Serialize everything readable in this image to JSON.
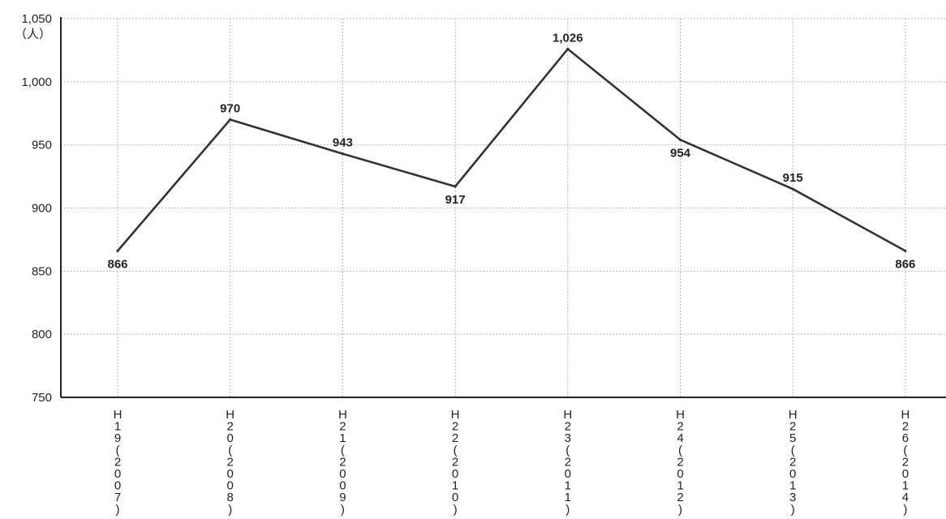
{
  "chart_data": {
    "type": "line",
    "title": "",
    "xlabel": "",
    "ylabel": "",
    "unit_label": "（人）",
    "categories": [
      "H19(2007)",
      "H20(2008)",
      "H21(2009)",
      "H22(2010)",
      "H23(2011)",
      "H24(2012)",
      "H25(2013)",
      "H26(2014)"
    ],
    "category_lines": [
      [
        "H",
        "1",
        "9",
        "(",
        "2",
        "0",
        "0",
        "7",
        ")"
      ],
      [
        "H",
        "2",
        "0",
        "(",
        "2",
        "0",
        "0",
        "8",
        ")"
      ],
      [
        "H",
        "2",
        "1",
        "(",
        "2",
        "0",
        "0",
        "9",
        ")"
      ],
      [
        "H",
        "2",
        "2",
        "(",
        "2",
        "0",
        "1",
        "0",
        ")"
      ],
      [
        "H",
        "2",
        "3",
        "(",
        "2",
        "0",
        "1",
        "1",
        ")"
      ],
      [
        "H",
        "2",
        "4",
        "(",
        "2",
        "0",
        "1",
        "2",
        ")"
      ],
      [
        "H",
        "2",
        "5",
        "(",
        "2",
        "0",
        "1",
        "3",
        ")"
      ],
      [
        "H",
        "2",
        "6",
        "(",
        "2",
        "0",
        "1",
        "4",
        ")"
      ]
    ],
    "series": [
      {
        "values": [
          866,
          970,
          943,
          917,
          1026,
          954,
          915,
          866
        ],
        "data_labels": [
          "866",
          "970",
          "943",
          "917",
          "1,026",
          "954",
          "915",
          "866"
        ],
        "label_positions": [
          "below",
          "above",
          "above",
          "below",
          "above",
          "below",
          "above",
          "below"
        ],
        "color": "#333333"
      }
    ],
    "ylim": [
      750,
      1050
    ],
    "yticks": [
      750,
      800,
      850,
      900,
      950,
      1000,
      1050
    ],
    "ytick_labels": [
      "750",
      "800",
      "850",
      "900",
      "950",
      "1,000",
      "1,050"
    ],
    "grid": true,
    "legend": "none"
  }
}
